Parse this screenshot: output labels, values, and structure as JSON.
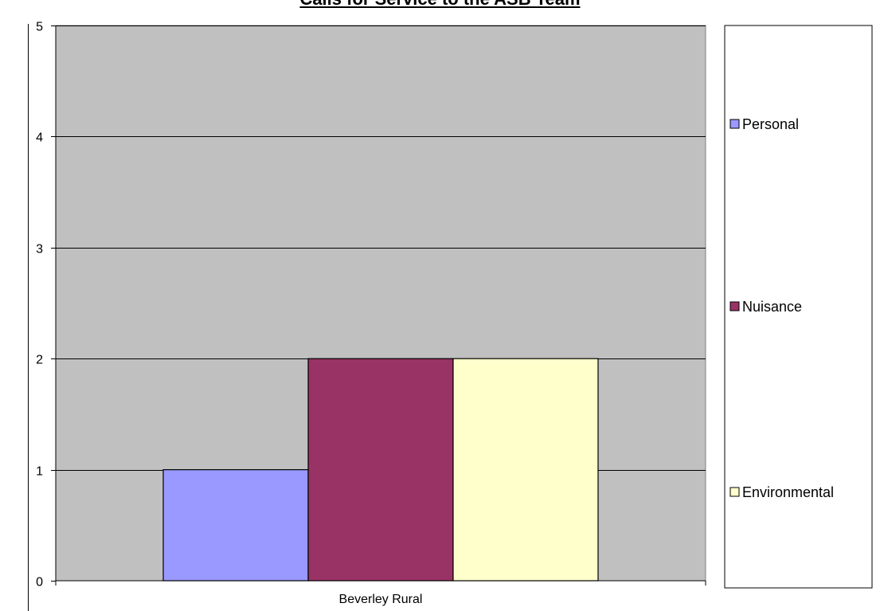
{
  "chart_data": {
    "type": "bar",
    "title": "Calls for Service to the ASB Team",
    "categories": [
      "Beverley Rural"
    ],
    "series": [
      {
        "name": "Personal",
        "values": [
          1
        ],
        "color": "#9999FF"
      },
      {
        "name": "Nuisance",
        "values": [
          2
        ],
        "color": "#993366"
      },
      {
        "name": "Environmental",
        "values": [
          2
        ],
        "color": "#FFFFCC"
      }
    ],
    "ylim": [
      0,
      5
    ],
    "yticks": [
      "0",
      "1",
      "2",
      "3",
      "4",
      "5"
    ],
    "grid": true,
    "legend_position": "right",
    "plot_background": "#C0C0C0"
  }
}
